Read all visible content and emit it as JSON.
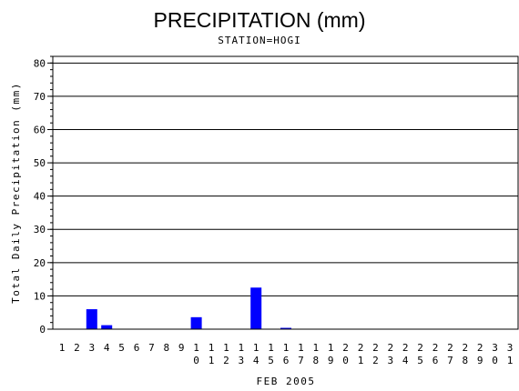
{
  "chart_data": {
    "type": "bar",
    "title": "PRECIPITATION (mm)",
    "subtitle": "STATION=HOGI",
    "xlabel": "FEB 2005",
    "ylabel": "Total Daily Precipitation (mm)",
    "ylim": [
      0,
      82
    ],
    "yticks": [
      0,
      10,
      20,
      30,
      40,
      50,
      60,
      70,
      80
    ],
    "grid": true,
    "bar_color": "#0000ff",
    "categories": [
      "1",
      "2",
      "3",
      "4",
      "5",
      "6",
      "7",
      "8",
      "9",
      "10",
      "11",
      "12",
      "13",
      "14",
      "15",
      "16",
      "17",
      "18",
      "19",
      "20",
      "21",
      "22",
      "23",
      "24",
      "25",
      "26",
      "27",
      "28",
      "29",
      "30",
      "31"
    ],
    "values": [
      0,
      0,
      6.0,
      1.2,
      0,
      0,
      0,
      0,
      0,
      3.6,
      0,
      0,
      0,
      12.5,
      0,
      0.4,
      0,
      0,
      0,
      0,
      0,
      0,
      0,
      0,
      0,
      0,
      0,
      0,
      0,
      0,
      0
    ]
  }
}
